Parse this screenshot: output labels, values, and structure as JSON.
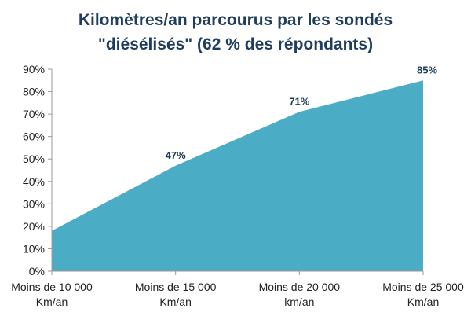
{
  "chart_data": {
    "type": "area",
    "title_lines": [
      "Kilomètres/an parcourus par les sondés",
      "\"diésélisés\" (62 % des répondants)"
    ],
    "categories": [
      [
        "Moins de 10 000",
        "Km/an"
      ],
      [
        "Moins de 15 000",
        "Km/an"
      ],
      [
        "Moins de 20 000",
        "km/an"
      ],
      [
        "Moins de 25 000",
        "Km/an"
      ]
    ],
    "values": [
      18,
      47,
      71,
      85
    ],
    "data_labels": [
      "",
      "47%",
      "71%",
      "85%"
    ],
    "y_ticks": [
      "0%",
      "10%",
      "20%",
      "30%",
      "40%",
      "50%",
      "60%",
      "70%",
      "80%",
      "90%"
    ],
    "ylim": [
      0,
      90
    ],
    "grid": false,
    "legend": "none",
    "colors": {
      "area": "#4bacc6",
      "title": "#1f3d5c",
      "data_label": "#1f3d5c",
      "axis": "#9a9a9a",
      "text": "#222222"
    }
  }
}
